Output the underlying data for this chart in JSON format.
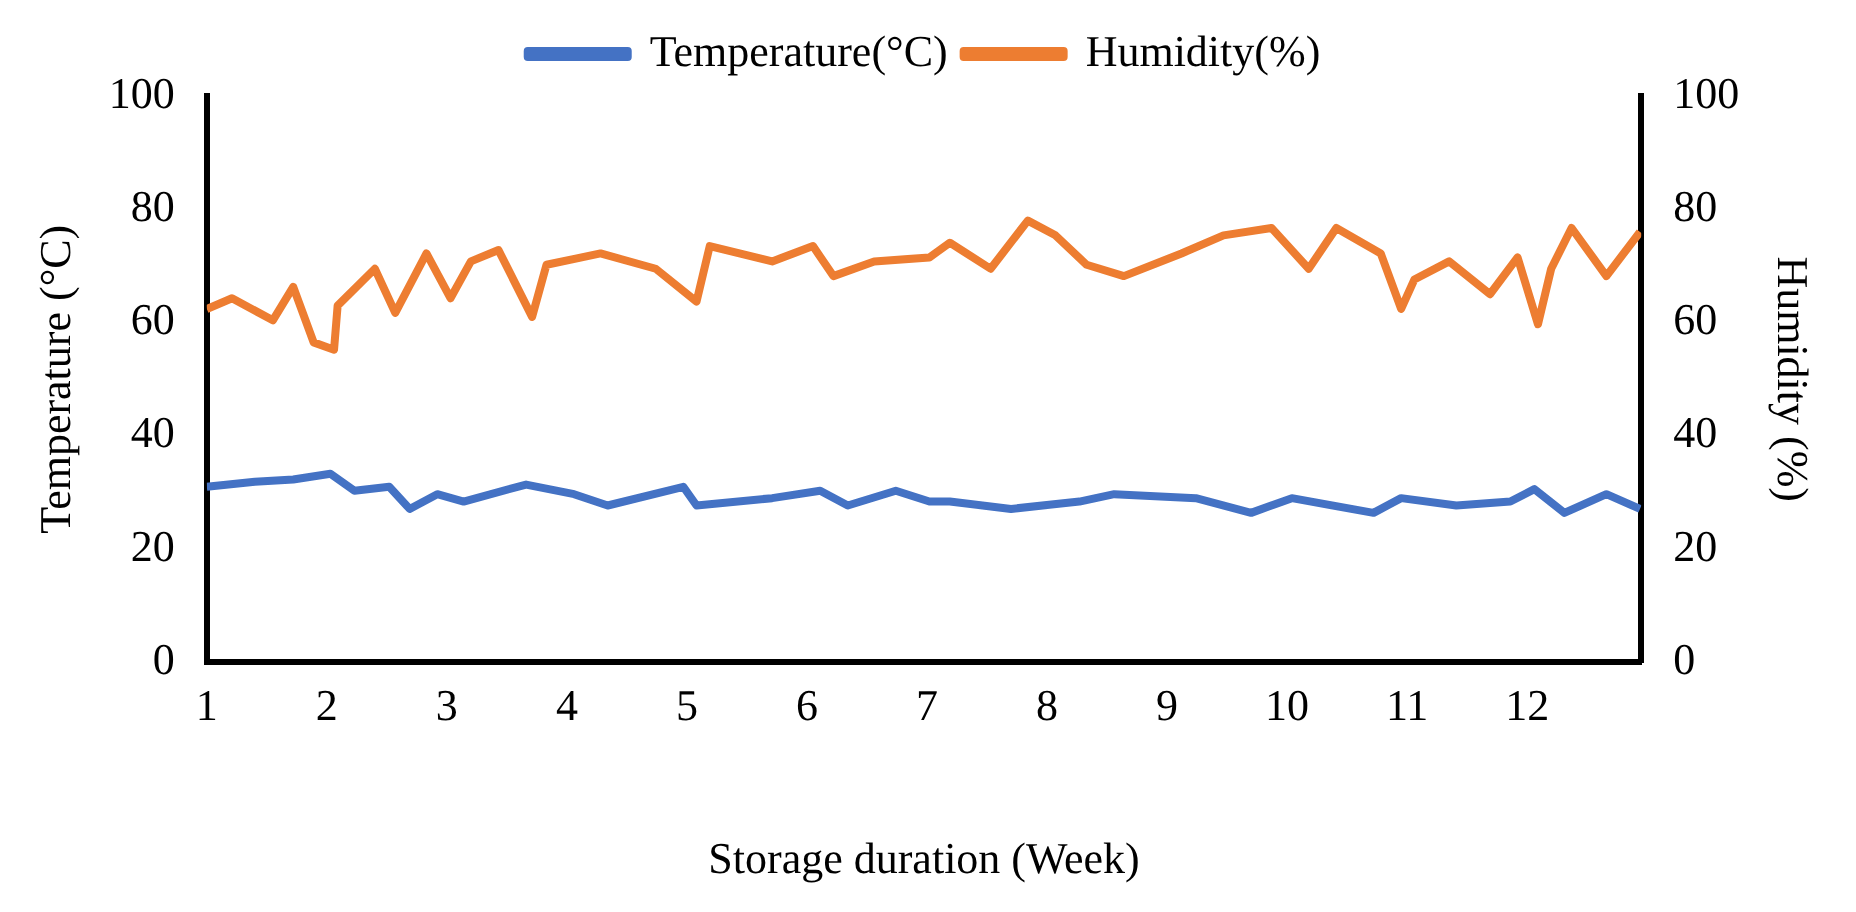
{
  "chart_data": {
    "type": "line",
    "xlabel": "Storage duration (Week)",
    "ylabel": "Temperature (°C)",
    "y2label": "Humidity (%)",
    "legend": "top",
    "grid": false,
    "marker": "none",
    "line_style": "solid",
    "xlim": [
      1,
      12.95
    ],
    "xticks": [
      1,
      2,
      3,
      4,
      5,
      6,
      7,
      8,
      9,
      10,
      11,
      12
    ],
    "ylim": [
      0,
      100
    ],
    "yticks": [
      0,
      20,
      40,
      60,
      80,
      100
    ],
    "y2lim": [
      0,
      100
    ],
    "y2ticks": [
      0,
      20,
      40,
      60,
      80,
      100
    ],
    "series": [
      {
        "name": "Temperature(°C)",
        "color": "#4472c4",
        "x": [
          1.0,
          1.4,
          1.72,
          2.03,
          2.23,
          2.52,
          2.69,
          2.92,
          3.14,
          3.66,
          4.06,
          4.34,
          4.97,
          5.08,
          5.71,
          6.11,
          6.34,
          6.74,
          7.02,
          7.19,
          7.7,
          8.27,
          8.56,
          9.24,
          9.7,
          10.04,
          10.72,
          10.95,
          11.41,
          11.86,
          12.06,
          12.31,
          12.66,
          12.94
        ],
        "values": [
          31,
          31.9,
          32.3,
          33.3,
          30.3,
          31,
          27.1,
          29.7,
          28.4,
          31.4,
          29.7,
          27.7,
          31,
          27.7,
          29,
          30.3,
          27.7,
          30.3,
          28.4,
          28.4,
          27.1,
          28.4,
          29.7,
          29,
          26.4,
          29,
          26.4,
          29,
          27.7,
          28.4,
          30.6,
          26.4,
          29.7,
          27.1
        ]
      },
      {
        "name": "Humidity(%)",
        "color": "#ed7d31",
        "axis": "y2",
        "x": [
          1.0,
          1.21,
          1.55,
          1.72,
          1.89,
          2.06,
          2.09,
          2.4,
          2.57,
          2.83,
          3.03,
          3.2,
          3.43,
          3.71,
          3.83,
          4.28,
          4.74,
          5.08,
          5.19,
          5.71,
          6.05,
          6.22,
          6.56,
          7.02,
          7.19,
          7.53,
          7.84,
          8.07,
          8.33,
          8.64,
          9.12,
          9.47,
          9.87,
          10.18,
          10.41,
          10.78,
          10.95,
          11.06,
          11.35,
          11.69,
          11.92,
          12.09,
          12.2,
          12.37,
          12.66,
          12.94
        ],
        "values": [
          62.4,
          64.3,
          60.4,
          66.3,
          56.5,
          55.2,
          63,
          69.5,
          61.7,
          72.2,
          64.3,
          70.8,
          72.8,
          61,
          70.2,
          72.2,
          69.5,
          63.7,
          73.5,
          70.8,
          73.5,
          68.2,
          70.8,
          71.5,
          74.1,
          69.5,
          78,
          75.4,
          70.2,
          68.2,
          72.2,
          75.4,
          76.7,
          69.5,
          76.7,
          72.2,
          62.4,
          67.6,
          70.8,
          65,
          71.5,
          59.7,
          69.5,
          76.7,
          68.2,
          76
        ]
      }
    ]
  }
}
